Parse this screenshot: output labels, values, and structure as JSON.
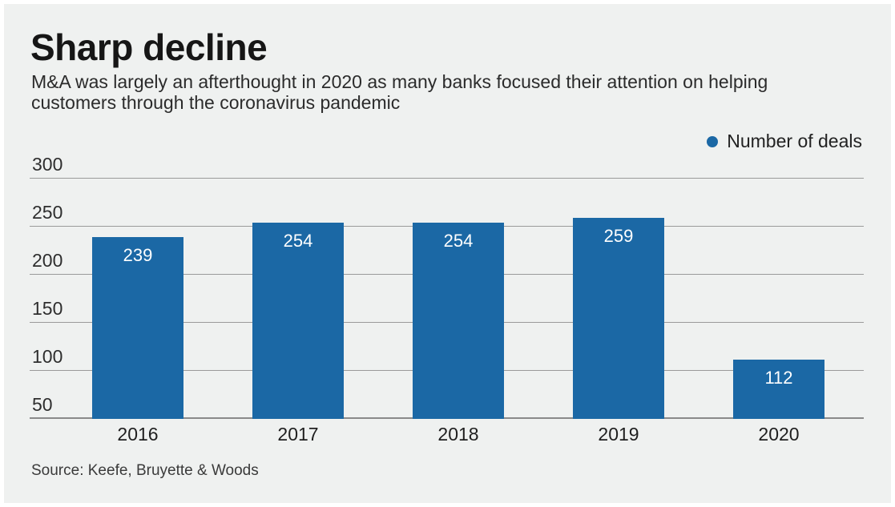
{
  "chart_data": {
    "type": "bar",
    "title": "Sharp decline",
    "subtitle": "M&A was largely an afterthought in 2020 as many banks focused their attention on helping customers through the coronavirus pandemic",
    "categories": [
      "2016",
      "2017",
      "2018",
      "2019",
      "2020"
    ],
    "series": [
      {
        "name": "Number of deals",
        "values": [
          239,
          254,
          254,
          259,
          112
        ]
      }
    ],
    "value_labels": [
      239,
      254,
      254,
      259,
      112
    ],
    "xlabel": "",
    "ylabel": "",
    "ylim": [
      50,
      300
    ],
    "yticks": [
      50,
      100,
      150,
      200,
      250,
      300
    ],
    "grid": true,
    "legend_position": "top-right",
    "source": "Source: Keefe, Bruyette & Woods",
    "colors": {
      "bar": "#1b68a5",
      "value_label": "#ffffff",
      "gridline": "#9a9a9a",
      "background": "#eff1f0"
    }
  }
}
